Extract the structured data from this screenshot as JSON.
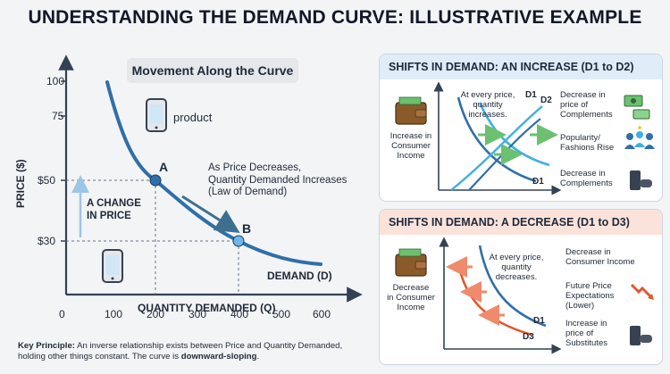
{
  "title": "UNDERSTANDING THE DEMAND CURVE: ILLUSTRATIVE EXAMPLE",
  "main": {
    "movement_title": "Movement Along the Curve",
    "product_label": "product",
    "point_a": "A",
    "point_b": "B",
    "annotation_line1": "As Price Decreases,",
    "annotation_line2": "Quantity Demanded Increases",
    "annotation_line3": "(Law of Demand)",
    "change_line1": "A CHANGE",
    "change_line2": "IN PRICE",
    "curve_label": "DEMAND (D)",
    "y_axis_label": "PRICE ($)",
    "x_axis_label": "QUANTITY DEMANDED (Q)",
    "y_ticks": [
      "100",
      "75",
      "$50",
      "$30"
    ],
    "x_ticks": [
      "0",
      "100",
      "200",
      "300",
      "400",
      "500",
      "600"
    ]
  },
  "key_principle": {
    "label": "Key Principle:",
    "text": " An inverse relationship exists between Price and Quantity Demanded, holding other things constant. The curve is ",
    "emphasis": "downward-sloping",
    "end": "."
  },
  "increase_panel": {
    "title": "SHIFTS IN DEMAND: AN INCREASE (D1 to D2)",
    "center_text_1": "At every price,",
    "center_text_2": "quantity",
    "center_text_3": "increases.",
    "d1": "D1",
    "d2": "D2",
    "d1_bottom": "D1",
    "left_label_1": "Increase in",
    "left_label_2": "Consumer",
    "left_label_3": "Income",
    "right_1_line1": "Decrease in",
    "right_1_line2": "price of",
    "right_1_line3": "Complements",
    "right_2_line1": "Popularity/",
    "right_2_line2": "Fashions Rise",
    "right_3_line1": "Decrease in",
    "right_3_line2": "Complements"
  },
  "decrease_panel": {
    "title": "SHIFTS IN DEMAND: A DECREASE (D1 to D3)",
    "center_text_1": "At every price,",
    "center_text_2": "quantity",
    "center_text_3": "decreases.",
    "d1": "D1",
    "d3": "D3",
    "left_label_1": "Decrease",
    "left_label_2": "in Consumer",
    "left_label_3": "Income",
    "right_1_line1": "Decrease in",
    "right_1_line2": "Consumer Income",
    "right_2_line1": "Future Price",
    "right_2_line2": "Expectations",
    "right_2_line3": "(Lower)",
    "right_3_line1": "Increase in",
    "right_3_line2": "price of",
    "right_3_line3": "Substitutes"
  },
  "colors": {
    "curve_blue": "#2f6fa8",
    "light_blue": "#3fb0e0",
    "orange": "#e2582f",
    "green_arrow": "#6cc070",
    "axis": "#334155"
  },
  "icons": [
    "smartphone-icon",
    "wallet-icon",
    "money-icon",
    "people-icon",
    "game-console-icon",
    "trend-down-icon"
  ]
}
